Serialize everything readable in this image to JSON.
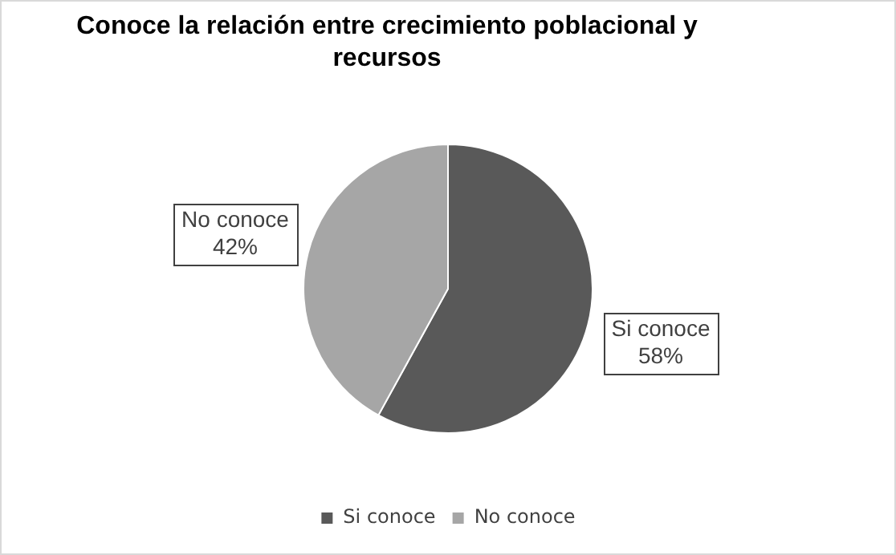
{
  "chart_data": {
    "type": "pie",
    "title": "Conoce la relación entre crecimiento poblacional y recursos",
    "categories": [
      "Si conoce",
      "No conoce"
    ],
    "values": [
      58,
      42
    ],
    "value_labels": [
      "58%",
      "42%"
    ],
    "colors": [
      "#595959",
      "#a6a6a6"
    ],
    "legend": "bottom"
  }
}
